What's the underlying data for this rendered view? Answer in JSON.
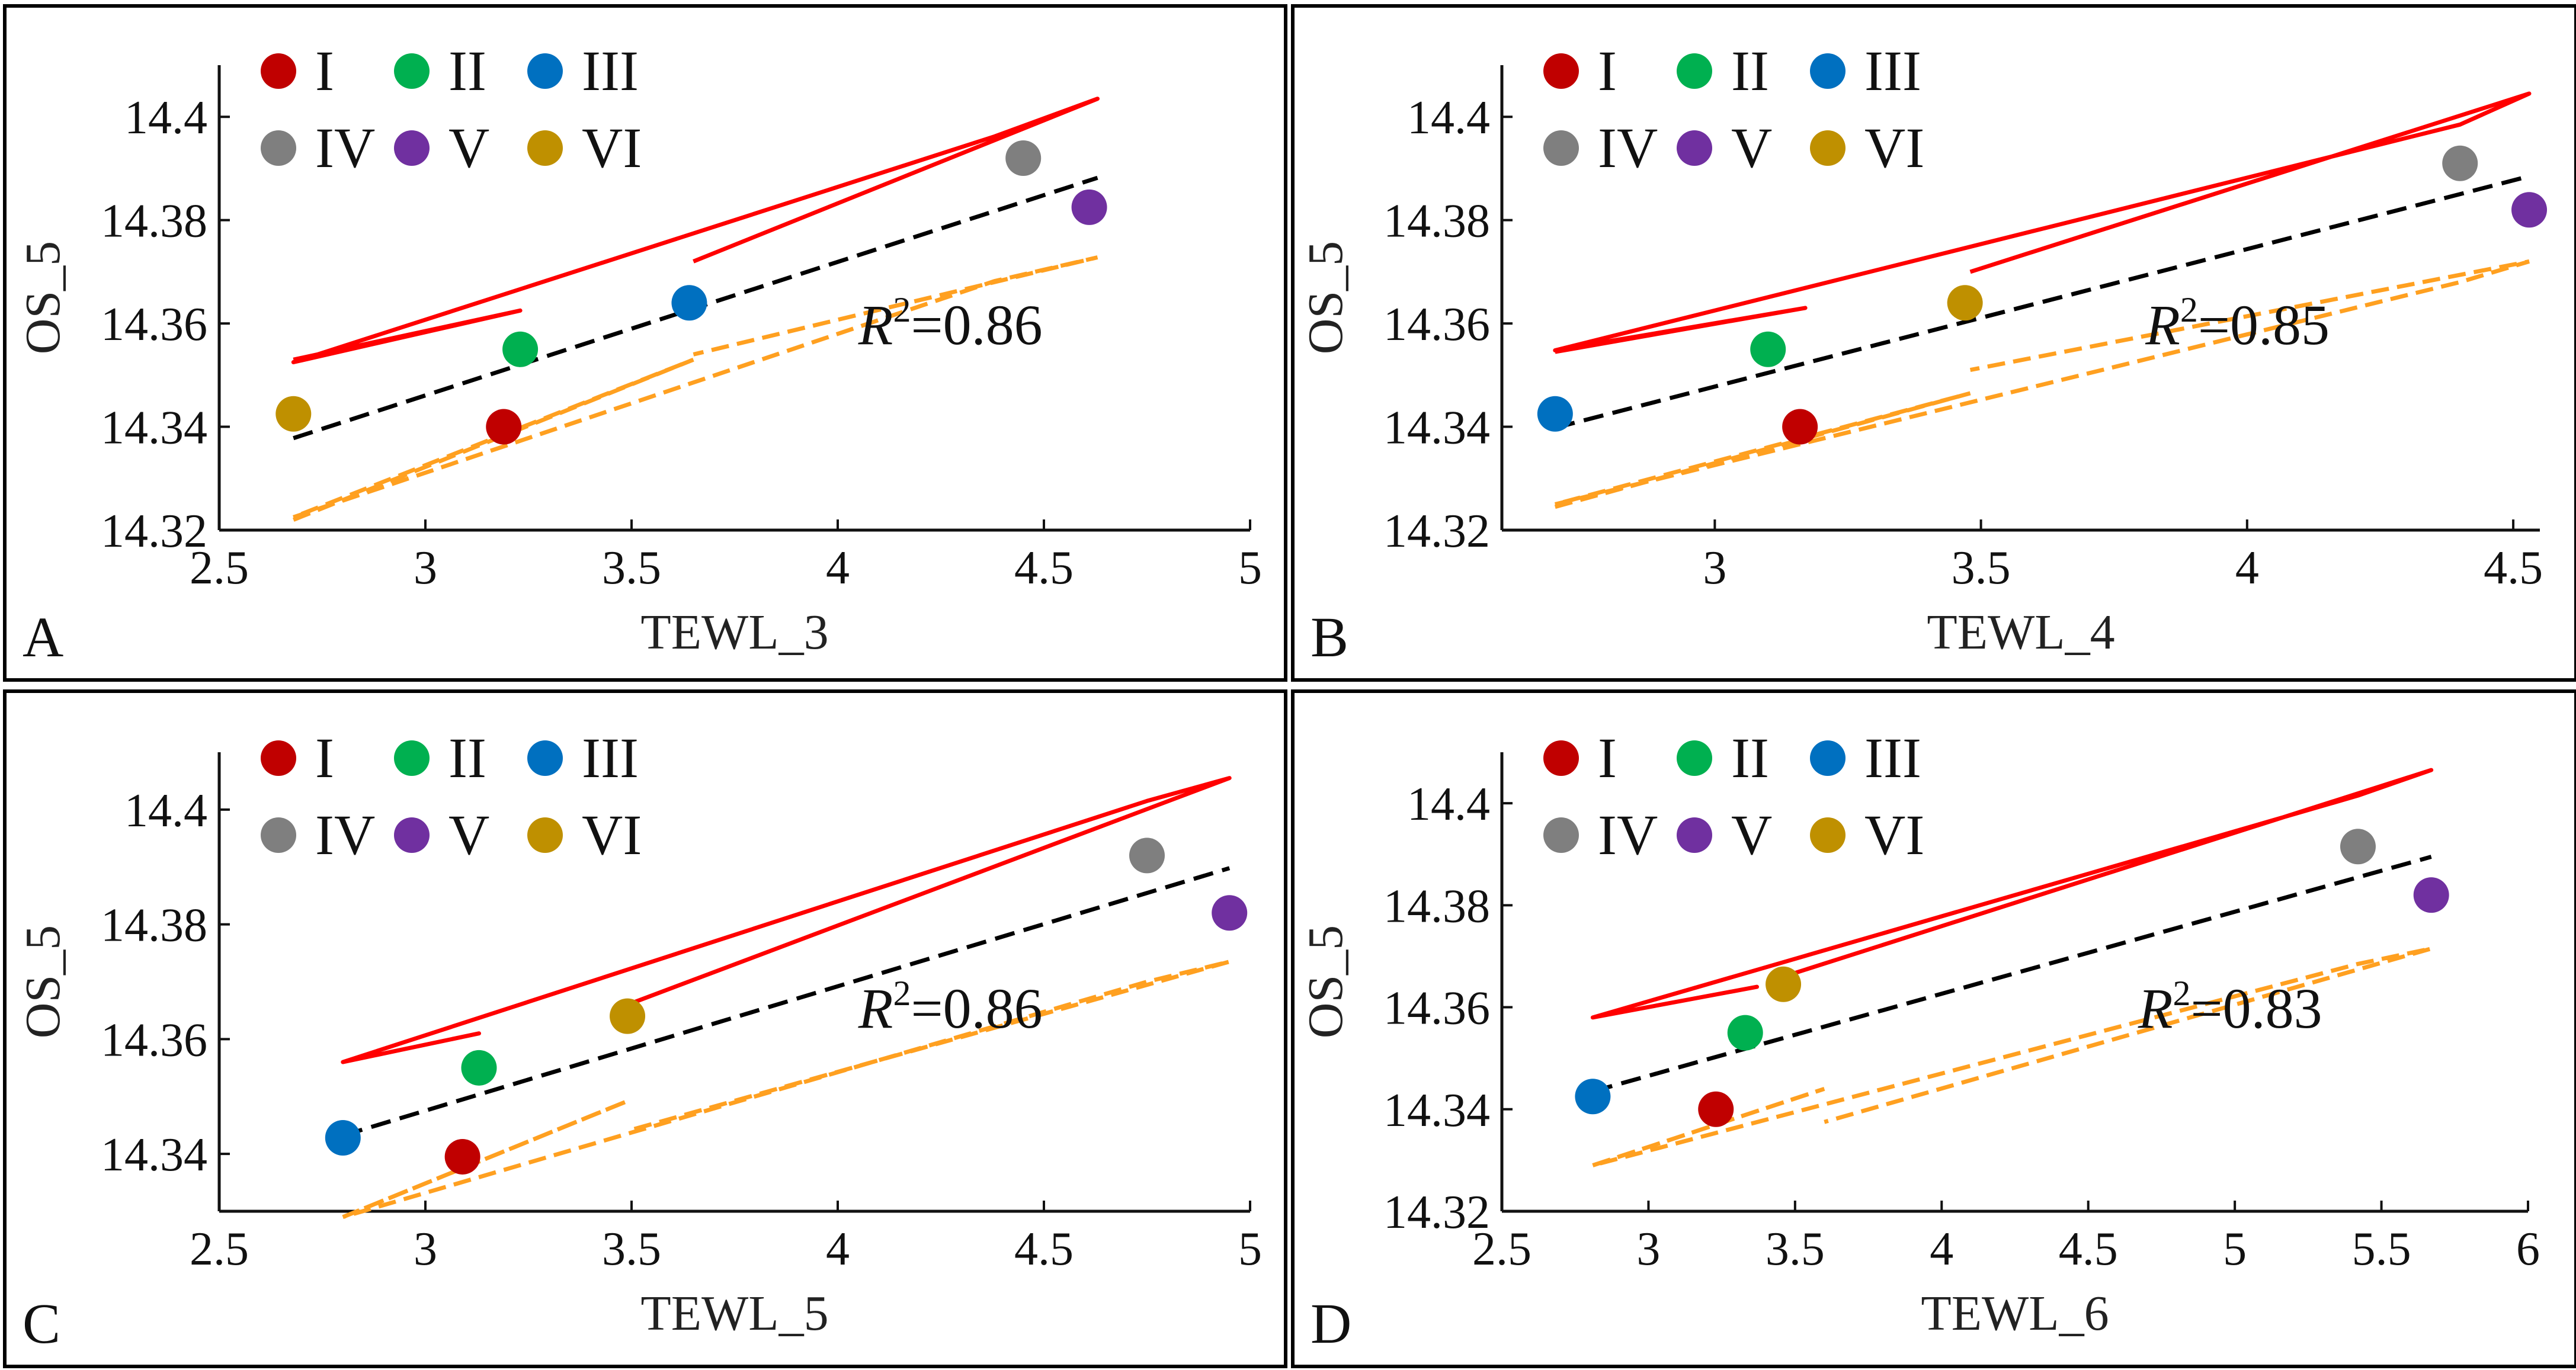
{
  "figure": {
    "colors": {
      "I": "#c00000",
      "II": "#00b050",
      "III": "#0070c0",
      "IV": "#7f7f7f",
      "V": "#7030a0",
      "VI": "#bf9000",
      "upper_band": "#ff0000",
      "lower_band": "#ffa020",
      "fit_line": "#000000"
    },
    "legend_labels": [
      "I",
      "II",
      "III",
      "IV",
      "V",
      "VI"
    ],
    "r2_prefix": "R",
    "r2_sup": "2"
  },
  "chart_data": [
    {
      "type": "scatter",
      "panel": "A",
      "xlabel": "TEWL_3",
      "ylabel": "OS_5",
      "xlim": [
        2.5,
        5
      ],
      "ylim": [
        14.32,
        14.41
      ],
      "xticks": [
        2.5,
        3,
        3.5,
        4,
        4.5,
        5
      ],
      "xtick_labels": [
        "2.5",
        "3",
        "3.5",
        "4",
        "4.5",
        "5"
      ],
      "yticks": [
        14.32,
        14.34,
        14.36,
        14.38,
        14.4
      ],
      "ytick_labels": [
        "14.32",
        "14.34",
        "14.36",
        "14.38",
        "14.4"
      ],
      "r2_label": "=0.86",
      "points": [
        {
          "group": "I",
          "x": 3.19,
          "y": 14.34
        },
        {
          "group": "II",
          "x": 3.23,
          "y": 14.355
        },
        {
          "group": "III",
          "x": 3.64,
          "y": 14.364
        },
        {
          "group": "IV",
          "x": 4.45,
          "y": 14.392
        },
        {
          "group": "V",
          "x": 4.61,
          "y": 14.3825
        },
        {
          "group": "VI",
          "x": 2.68,
          "y": 14.3425
        }
      ],
      "fit": {
        "x": [
          2.68,
          4.63
        ],
        "y": [
          14.3378,
          14.3882
        ]
      },
      "upper_band": {
        "x": [
          2.68,
          3.23,
          2.68,
          4.38,
          4.63,
          3.65
        ],
        "y": [
          14.353,
          14.3625,
          14.3525,
          14.3962,
          14.4035,
          14.372
        ]
      },
      "lower_band": {
        "x": [
          2.68,
          3.65,
          2.68,
          4.38,
          4.63,
          3.65
        ],
        "y": [
          14.322,
          14.353,
          14.3225,
          14.3682,
          14.3728,
          14.354
        ]
      }
    },
    {
      "type": "scatter",
      "panel": "B",
      "xlabel": "TEWL_4",
      "ylabel": "OS_5",
      "xlim": [
        2.6,
        4.55
      ],
      "ylim": [
        14.32,
        14.41
      ],
      "xticks": [
        3,
        3.5,
        4,
        4.5
      ],
      "xtick_labels": [
        "3",
        "3.5",
        "4",
        "4.5"
      ],
      "yticks": [
        14.32,
        14.34,
        14.36,
        14.38,
        14.4
      ],
      "ytick_labels": [
        "14.32",
        "14.34",
        "14.36",
        "14.38",
        "14.4"
      ],
      "r2_label": "=0.85",
      "points": [
        {
          "group": "I",
          "x": 3.16,
          "y": 14.34
        },
        {
          "group": "II",
          "x": 3.1,
          "y": 14.355
        },
        {
          "group": "III",
          "x": 2.7,
          "y": 14.3425
        },
        {
          "group": "IV",
          "x": 4.4,
          "y": 14.391
        },
        {
          "group": "V",
          "x": 4.53,
          "y": 14.382
        },
        {
          "group": "VI",
          "x": 3.47,
          "y": 14.364
        }
      ],
      "fit": {
        "x": [
          2.7,
          4.53
        ],
        "y": [
          14.3398,
          14.3885
        ]
      },
      "upper_band": {
        "x": [
          2.7,
          3.17,
          2.7,
          4.4,
          4.53,
          3.48
        ],
        "y": [
          14.3545,
          14.363,
          14.3548,
          14.3985,
          14.4045,
          14.37
        ]
      },
      "lower_band": {
        "x": [
          2.7,
          3.48,
          2.7,
          4.4,
          4.53,
          3.48
        ],
        "y": [
          14.3245,
          14.3465,
          14.325,
          14.368,
          14.372,
          14.351
        ]
      }
    },
    {
      "type": "scatter",
      "panel": "C",
      "xlabel": "TEWL_5",
      "ylabel": "OS_5",
      "xlim": [
        2.5,
        5
      ],
      "ylim": [
        14.33,
        14.41
      ],
      "xticks": [
        2.5,
        3,
        3.5,
        4,
        4.5,
        5
      ],
      "xtick_labels": [
        "2.5",
        "3",
        "3.5",
        "4",
        "4.5",
        "5"
      ],
      "yticks": [
        14.34,
        14.36,
        14.38,
        14.4
      ],
      "ytick_labels": [
        "14.34",
        "14.36",
        "14.38",
        "14.4"
      ],
      "r2_label": "=0.86",
      "points": [
        {
          "group": "I",
          "x": 3.09,
          "y": 14.3395
        },
        {
          "group": "II",
          "x": 3.13,
          "y": 14.355
        },
        {
          "group": "III",
          "x": 2.8,
          "y": 14.3428
        },
        {
          "group": "IV",
          "x": 4.75,
          "y": 14.392
        },
        {
          "group": "V",
          "x": 4.95,
          "y": 14.382
        },
        {
          "group": "VI",
          "x": 3.49,
          "y": 14.364
        }
      ],
      "fit": {
        "x": [
          2.8,
          4.95
        ],
        "y": [
          14.3432,
          14.3898
        ]
      },
      "upper_band": {
        "x": [
          2.8,
          3.13,
          2.8,
          4.75,
          4.95,
          3.49
        ],
        "y": [
          14.356,
          14.361,
          14.356,
          14.4015,
          14.4055,
          14.366
        ]
      },
      "lower_band": {
        "x": [
          2.8,
          3.49,
          2.8,
          4.75,
          4.95,
          3.49
        ],
        "y": [
          14.329,
          14.3492,
          14.329,
          14.37,
          14.3735,
          14.344
        ]
      }
    },
    {
      "type": "scatter",
      "panel": "D",
      "xlabel": "TEWL_6",
      "ylabel": "OS_5",
      "xlim": [
        2.5,
        6
      ],
      "ylim": [
        14.32,
        14.41
      ],
      "xticks": [
        2.5,
        3,
        3.5,
        4,
        4.5,
        5,
        5.5,
        6
      ],
      "xtick_labels": [
        "2.5",
        "3",
        "3.5",
        "4",
        "4.5",
        "5",
        "5.5",
        "6"
      ],
      "yticks": [
        14.32,
        14.34,
        14.36,
        14.38,
        14.4
      ],
      "ytick_labels": [
        "14.32",
        "14.34",
        "14.36",
        "14.38",
        "14.4"
      ],
      "r2_label": "=0.83",
      "points": [
        {
          "group": "I",
          "x": 3.23,
          "y": 14.34
        },
        {
          "group": "II",
          "x": 3.33,
          "y": 14.355
        },
        {
          "group": "III",
          "x": 2.81,
          "y": 14.3425
        },
        {
          "group": "IV",
          "x": 5.42,
          "y": 14.3915
        },
        {
          "group": "V",
          "x": 5.67,
          "y": 14.382
        },
        {
          "group": "VI",
          "x": 3.46,
          "y": 14.3645
        }
      ],
      "fit": {
        "x": [
          2.81,
          5.67
        ],
        "y": [
          14.3435,
          14.3895
        ]
      },
      "upper_band": {
        "x": [
          2.81,
          3.37,
          2.81,
          5.42,
          5.67,
          3.46
        ],
        "y": [
          14.358,
          14.364,
          14.358,
          14.4015,
          14.4065,
          14.366
        ]
      },
      "lower_band": {
        "x": [
          2.81,
          3.6,
          2.81,
          5.42,
          5.67,
          3.6
        ],
        "y": [
          14.329,
          14.344,
          14.329,
          14.3685,
          14.3715,
          14.3375
        ]
      }
    }
  ]
}
